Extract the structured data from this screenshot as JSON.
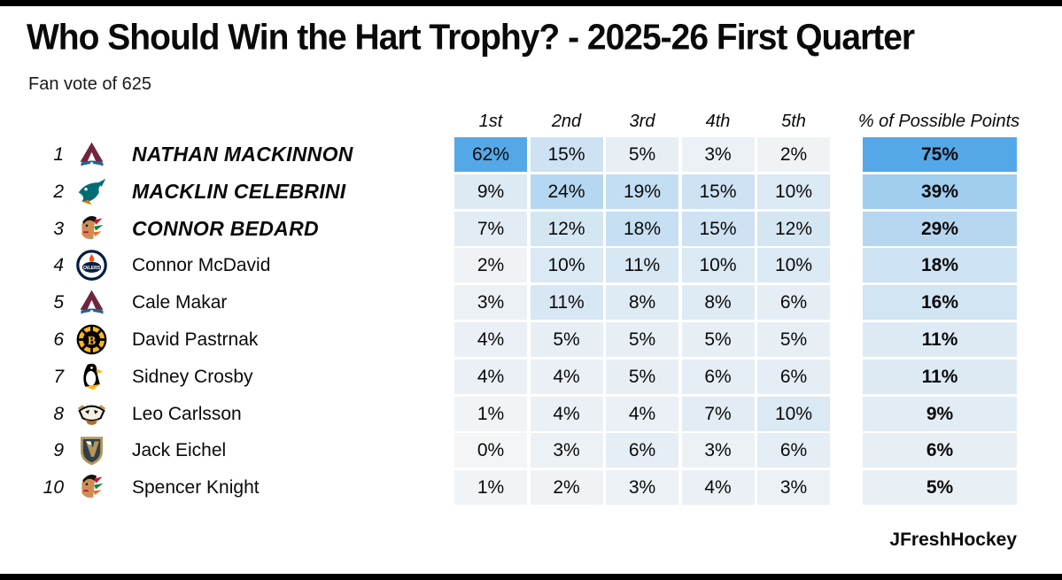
{
  "header": {
    "title": "Who Should Win the Hart Trophy? - 2025-26 First Quarter",
    "subtitle": "Fan vote of 625"
  },
  "footer": {
    "credit": "JFreshHockey"
  },
  "colors": {
    "heat_low": "#f4f5f6",
    "heat_high": "#55a8e8",
    "frame_bar": "#000000",
    "text": "#111111"
  },
  "chart_data": {
    "type": "table",
    "title": "Who Should Win the Hart Trophy? - 2025-26 First Quarter",
    "subtitle": "Fan vote of 625",
    "columns": [
      "1st",
      "2nd",
      "3rd",
      "4th",
      "5th"
    ],
    "points_label": "% of Possible Points",
    "vote_scale_max": 62,
    "points_scale_max": 75,
    "value_unit": "%",
    "rows": [
      {
        "rank": 1,
        "player": "NATHAN MACKINNON",
        "team_logo": "avalanche-logo",
        "emphasized": true,
        "votes": [
          62,
          15,
          5,
          3,
          2
        ],
        "points": 75
      },
      {
        "rank": 2,
        "player": "MACKLIN CELEBRINI",
        "team_logo": "sharks-logo",
        "emphasized": true,
        "votes": [
          9,
          24,
          19,
          15,
          10
        ],
        "points": 39
      },
      {
        "rank": 3,
        "player": "CONNOR BEDARD",
        "team_logo": "blackhawks-logo",
        "emphasized": true,
        "votes": [
          7,
          12,
          18,
          15,
          12
        ],
        "points": 29
      },
      {
        "rank": 4,
        "player": "Connor McDavid",
        "team_logo": "oilers-logo",
        "emphasized": false,
        "votes": [
          2,
          10,
          11,
          10,
          10
        ],
        "points": 18
      },
      {
        "rank": 5,
        "player": "Cale Makar",
        "team_logo": "avalanche-logo",
        "emphasized": false,
        "votes": [
          3,
          11,
          8,
          8,
          6
        ],
        "points": 16
      },
      {
        "rank": 6,
        "player": "David Pastrnak",
        "team_logo": "bruins-logo",
        "emphasized": false,
        "votes": [
          4,
          5,
          5,
          5,
          5
        ],
        "points": 11
      },
      {
        "rank": 7,
        "player": "Sidney Crosby",
        "team_logo": "penguins-logo",
        "emphasized": false,
        "votes": [
          4,
          4,
          5,
          6,
          6
        ],
        "points": 11
      },
      {
        "rank": 8,
        "player": "Leo Carlsson",
        "team_logo": "ducks-logo",
        "emphasized": false,
        "votes": [
          1,
          4,
          4,
          7,
          10
        ],
        "points": 9
      },
      {
        "rank": 9,
        "player": "Jack Eichel",
        "team_logo": "golden-knights-logo",
        "emphasized": false,
        "votes": [
          0,
          3,
          6,
          3,
          6
        ],
        "points": 6
      },
      {
        "rank": 10,
        "player": "Spencer Knight",
        "team_logo": "blackhawks-logo",
        "emphasized": false,
        "votes": [
          1,
          2,
          3,
          4,
          3
        ],
        "points": 5
      }
    ]
  }
}
